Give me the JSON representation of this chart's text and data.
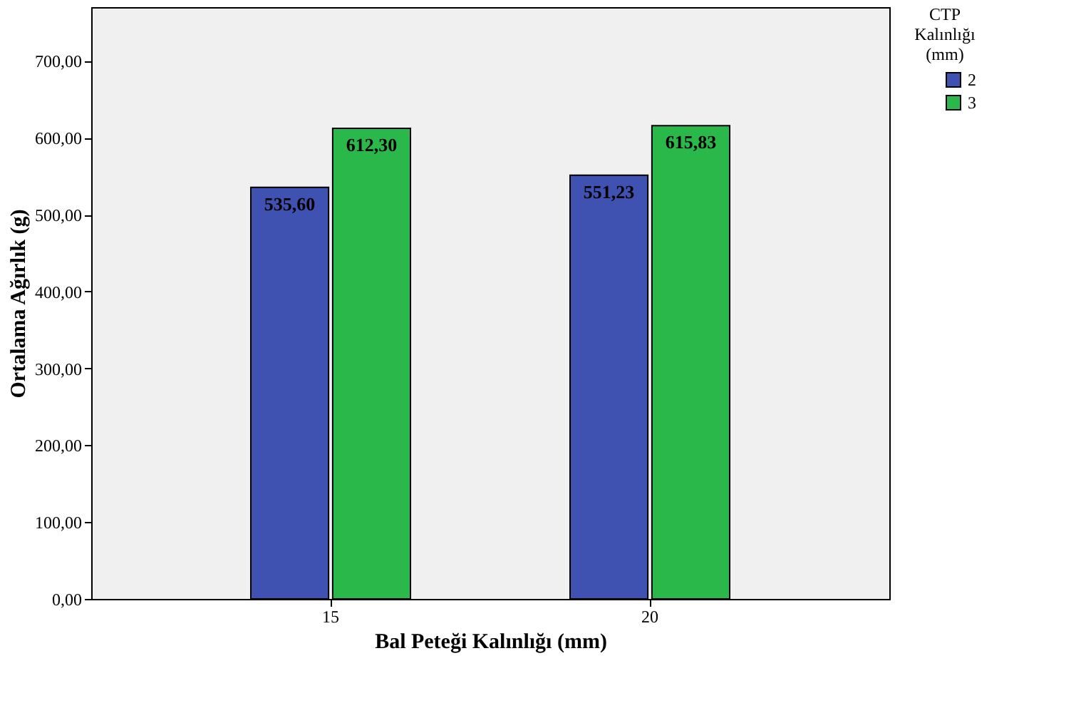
{
  "chart_data": {
    "type": "bar",
    "xlabel": "Bal Peteği Kalınlığı (mm)",
    "ylabel": "Ortalama Ağırlık (g)",
    "legend_title": "CTP Kalınlığı (mm)",
    "categories": [
      "15",
      "20"
    ],
    "series": [
      {
        "name": "2",
        "color": "#3f51b1",
        "values": [
          535.6,
          551.23
        ],
        "value_labels": [
          "535,60",
          "551,23"
        ]
      },
      {
        "name": "3",
        "color": "#2bb84a",
        "values": [
          612.3,
          615.83
        ],
        "value_labels": [
          "612,30",
          "615,83"
        ]
      }
    ],
    "ylim": [
      0,
      770
    ],
    "yticks": [
      {
        "value": 0,
        "label": "0,00"
      },
      {
        "value": 100,
        "label": "100,00"
      },
      {
        "value": 200,
        "label": "200,00"
      },
      {
        "value": 300,
        "label": "300,00"
      },
      {
        "value": 400,
        "label": "400,00"
      },
      {
        "value": 500,
        "label": "500,00"
      },
      {
        "value": 600,
        "label": "600,00"
      },
      {
        "value": 700,
        "label": "700,00"
      }
    ],
    "grid": false,
    "legend": "top right"
  }
}
